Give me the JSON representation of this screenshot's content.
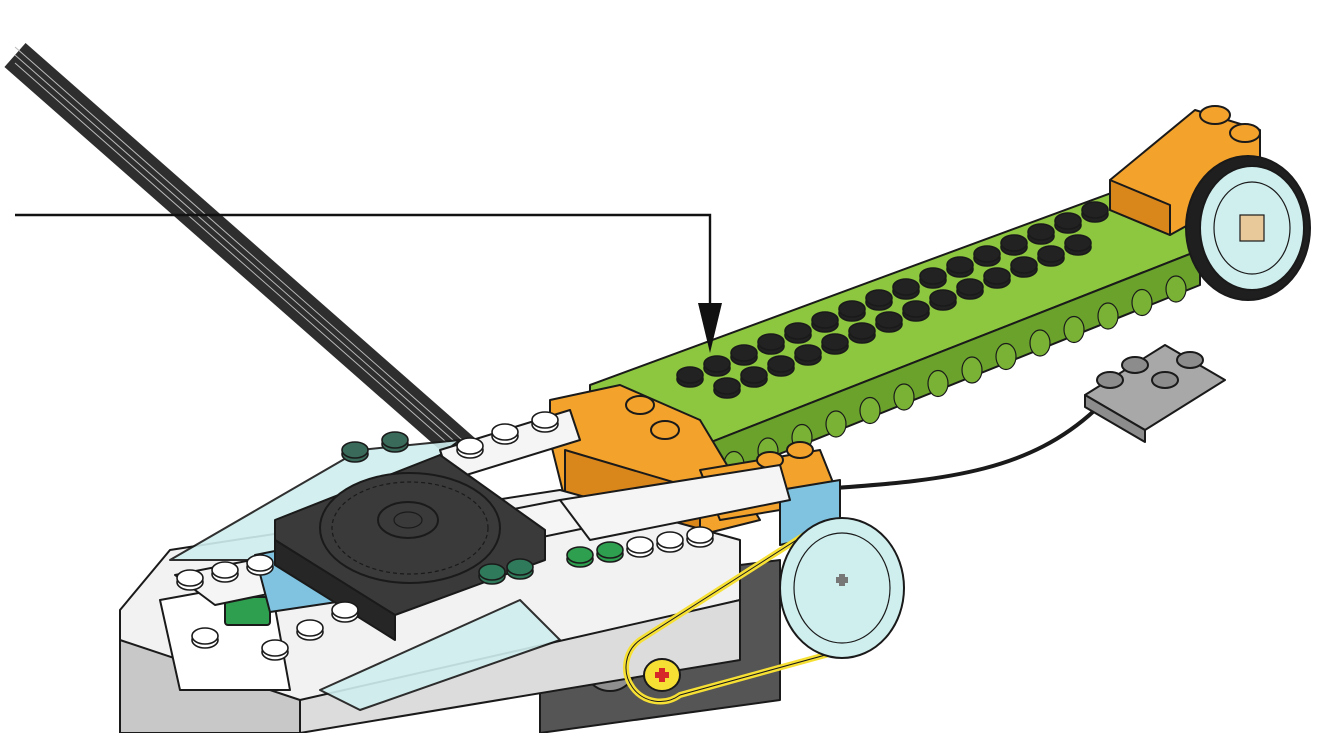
{
  "title": "",
  "labels": [],
  "colors": {
    "lime": "#8dc63f",
    "lime_dark": "#6aa22c",
    "orange": "#f3a22c",
    "orange_dark": "#d9861a",
    "hub_white": "#f2f2f2",
    "hub_gray": "#c8c8c8",
    "dark_gray": "#3a3a3a",
    "trans_clear": "#cfeeee",
    "medium_azure": "#7fc3e0",
    "green_button": "#2e9e4f",
    "yellow_belt": "#f7e034",
    "axle_red": "#d62828",
    "light_gray": "#a8a8a8",
    "callout_line": "#111111"
  },
  "parts": {
    "cable": "ribbon-cable",
    "hub": "smarthub",
    "motor": "motor",
    "beam": "lime-beam",
    "wheel": "rubber-wheel",
    "pulley": "pulley",
    "belt": "rubber-belt",
    "sensor": "tilt-sensor-plate",
    "turntable": "turntable",
    "callout": "callout-arrow"
  }
}
